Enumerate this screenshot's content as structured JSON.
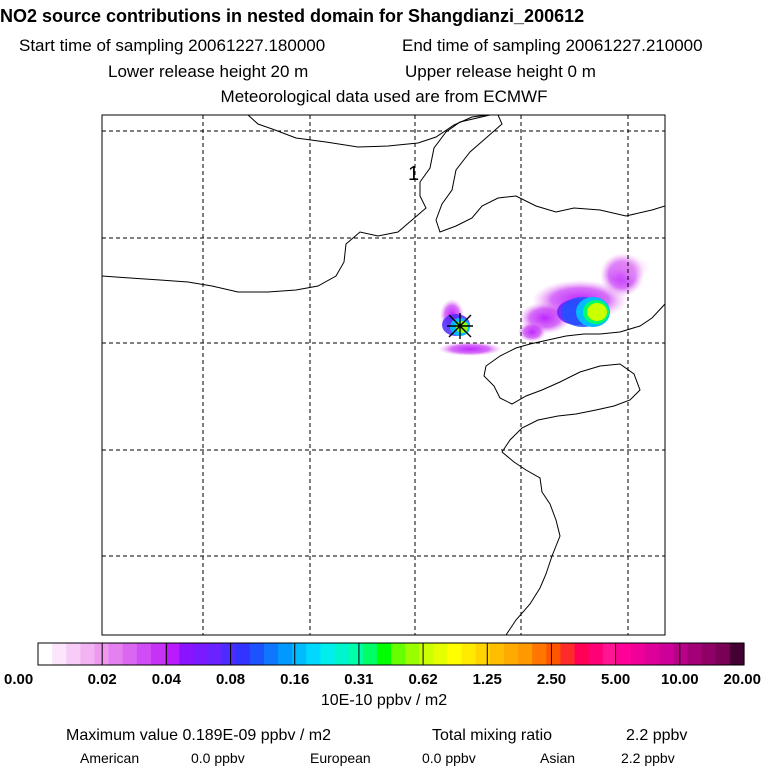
{
  "header": {
    "title": "NO2 source contributions in nested domain for Shangdianzi_200612",
    "start_time": "Start time of sampling 20061227.180000",
    "end_time": "End time of sampling 20061227.210000",
    "lower_release": "Lower release height   20 m",
    "upper_release": "Upper release height    0 m",
    "met_data": "Meteorological data used are from ECMWF"
  },
  "chart_data": {
    "type": "heatmap",
    "map_label": "1",
    "colorbar": {
      "ticks": [
        "0.00",
        "0.02",
        "0.04",
        "0.08",
        "0.16",
        "0.31",
        "0.62",
        "1.25",
        "2.50",
        "5.00",
        "10.00",
        "20.00"
      ],
      "colors": [
        "#ffffff",
        "#fbe6fb",
        "#f7ccf7",
        "#f3b3f3",
        "#ee99ee",
        "#e480f0",
        "#da66f2",
        "#d04cf4",
        "#c633f6",
        "#bb1aff",
        "#8a14ff",
        "#7a1bff",
        "#6a22ff",
        "#4d2cff",
        "#3333ff",
        "#1f52ff",
        "#0f77ff",
        "#0099ff",
        "#00bbff",
        "#00d8ff",
        "#00eeee",
        "#00f5cc",
        "#00ffaa",
        "#00ff66",
        "#00ff00",
        "#66ff00",
        "#99ff00",
        "#ccff00",
        "#e6ff00",
        "#ffff00",
        "#ffea00",
        "#ffd400",
        "#ffbf00",
        "#ffaa00",
        "#ff9900",
        "#ff7700",
        "#ff5500",
        "#ff2a2a",
        "#ff0055",
        "#ff0077",
        "#ff1493",
        "#ff0099",
        "#ee0099",
        "#dd0099",
        "#cc0099",
        "#b80088",
        "#a30077",
        "#8e0066",
        "#7a0055",
        "#440033"
      ]
    },
    "unit": "10E-10 ppbv / m2"
  },
  "footer": {
    "max_value": "Maximum value  0.189E-09 ppbv / m2",
    "total_label": "Total mixing ratio",
    "total_value": "2.2 ppbv",
    "sources": [
      {
        "name": "American",
        "value": "0.0 ppbv"
      },
      {
        "name": "European",
        "value": "0.0 ppbv"
      },
      {
        "name": "Asian",
        "value": "2.2 ppbv"
      }
    ]
  }
}
